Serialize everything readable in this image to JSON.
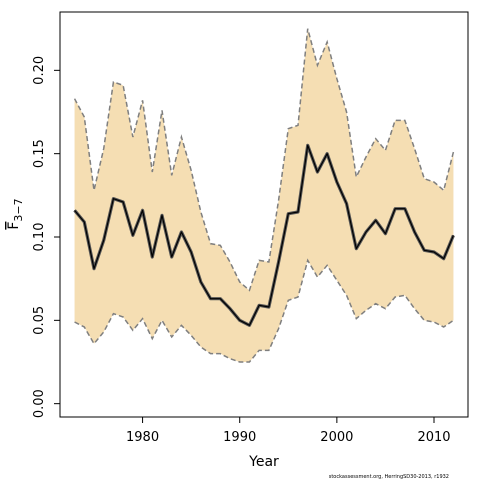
{
  "chart_data": {
    "type": "area",
    "title": "",
    "xlabel": "Year",
    "ylabel_main": "F",
    "ylabel_sub": "3−7",
    "xlim": [
      1971.5,
      2013.5
    ],
    "ylim": [
      -0.008,
      0.235
    ],
    "xticks": [
      1980,
      1990,
      2000,
      2010
    ],
    "xtick_labels": [
      "1980",
      "1990",
      "2000",
      "2010"
    ],
    "yticks": [
      0,
      0.05,
      0.1,
      0.15,
      0.2
    ],
    "ytick_labels": [
      "0.00",
      "0.05",
      "0.10",
      "0.15",
      "0.20"
    ],
    "grid": false,
    "legend": "none",
    "x": [
      1973,
      1974,
      1975,
      1976,
      1977,
      1978,
      1979,
      1980,
      1981,
      1982,
      1983,
      1984,
      1985,
      1986,
      1987,
      1988,
      1989,
      1990,
      1991,
      1992,
      1993,
      1994,
      1995,
      1996,
      1997,
      1998,
      1999,
      2000,
      2001,
      2002,
      2003,
      2004,
      2005,
      2006,
      2007,
      2008,
      2009,
      2010,
      2011,
      2012
    ],
    "series": [
      {
        "role": "upper",
        "values": [
          0.183,
          0.172,
          0.128,
          0.153,
          0.193,
          0.191,
          0.16,
          0.182,
          0.139,
          0.176,
          0.137,
          0.16,
          0.14,
          0.115,
          0.096,
          0.095,
          0.085,
          0.073,
          0.068,
          0.086,
          0.085,
          0.122,
          0.165,
          0.167,
          0.225,
          0.203,
          0.217,
          0.195,
          0.175,
          0.136,
          0.148,
          0.159,
          0.152,
          0.17,
          0.17,
          0.153,
          0.135,
          0.133,
          0.128,
          0.151
        ]
      },
      {
        "role": "estimate",
        "values": [
          0.116,
          0.109,
          0.081,
          0.098,
          0.123,
          0.121,
          0.101,
          0.116,
          0.088,
          0.113,
          0.088,
          0.103,
          0.091,
          0.073,
          0.063,
          0.063,
          0.057,
          0.05,
          0.047,
          0.059,
          0.058,
          0.085,
          0.114,
          0.115,
          0.155,
          0.139,
          0.15,
          0.133,
          0.12,
          0.093,
          0.103,
          0.11,
          0.102,
          0.117,
          0.117,
          0.103,
          0.092,
          0.091,
          0.087,
          0.101
        ]
      },
      {
        "role": "lower",
        "values": [
          0.049,
          0.046,
          0.036,
          0.043,
          0.054,
          0.052,
          0.044,
          0.051,
          0.039,
          0.05,
          0.04,
          0.047,
          0.041,
          0.034,
          0.03,
          0.03,
          0.027,
          0.025,
          0.025,
          0.032,
          0.032,
          0.045,
          0.062,
          0.064,
          0.086,
          0.076,
          0.083,
          0.074,
          0.065,
          0.051,
          0.056,
          0.06,
          0.057,
          0.064,
          0.065,
          0.057,
          0.05,
          0.049,
          0.046,
          0.05
        ]
      }
    ],
    "colors": {
      "band": "#f5deb3",
      "band_edge": "#7f7f7f",
      "line_outer": "#555555",
      "line_inner": "#000000"
    }
  },
  "credit": "stockassessment.org, HerringSD30-2013, r1932"
}
